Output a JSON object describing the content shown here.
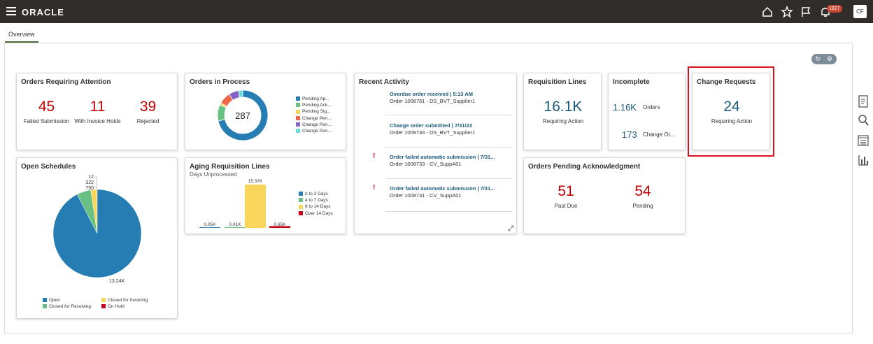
{
  "header": {
    "brand": "ORACLE",
    "notification_count": "1827",
    "user_initials": "CF",
    "colors": {
      "bar": "#312d2a",
      "badge": "#c74634"
    },
    "icons": [
      "menu-icon",
      "home-icon",
      "star-icon",
      "flag-icon",
      "bell-icon"
    ]
  },
  "tabs": [
    {
      "label": "Overview"
    }
  ],
  "cards": {
    "orders_attention": {
      "title": "Orders Requiring Attention",
      "metrics": [
        {
          "value": "45",
          "label": "Failed Submission"
        },
        {
          "value": "11",
          "label": "With Invoice Holds"
        },
        {
          "value": "39",
          "label": "Rejected"
        }
      ]
    },
    "orders_process": {
      "title": "Orders in Process",
      "center_value": "287",
      "legend": [
        {
          "label": "Pending Ap...",
          "color": "#267db3"
        },
        {
          "label": "Pending Ack...",
          "color": "#68c182"
        },
        {
          "label": "Pending Sig...",
          "color": "#fad55c"
        },
        {
          "label": "Change Pen...",
          "color": "#ed6647"
        },
        {
          "label": "Change Pen...",
          "color": "#8561c8"
        },
        {
          "label": "Change Pen...",
          "color": "#6ddbdb"
        }
      ]
    },
    "recent_activity": {
      "title": "Recent Activity",
      "items": [
        {
          "title": "Overdue order received | 5:13 AM",
          "sub": "Order 1008761 - DS_BVT_Supplier1",
          "warning": false
        },
        {
          "title": "Change order submitted | 7/31/23",
          "sub": "Order 1008734 - DS_BVT_Supplier1",
          "warning": false
        },
        {
          "title": "Order failed automatic submission | 7/31...",
          "sub": "Order 1008733 - CV_SuppA01",
          "warning": true
        },
        {
          "title": "Order failed automatic submission | 7/31...",
          "sub": "Order 1008731 - CV_SuppA01",
          "warning": true
        }
      ]
    },
    "requisition_lines": {
      "title": "Requisition Lines",
      "value": "16.1K",
      "label": "Requiring Action"
    },
    "incomplete": {
      "title": "Incomplete",
      "rows": [
        {
          "value": "1.16K",
          "label": "Orders"
        },
        {
          "value": "173",
          "label": "Change Or..."
        }
      ]
    },
    "change_requests": {
      "title": "Change Requests",
      "value": "24",
      "label": "Requiring Action"
    },
    "open_schedules": {
      "title": "Open Schedules",
      "slice_labels": [
        "12",
        "322",
        "750",
        "13.24K"
      ],
      "legend": [
        {
          "label": "Open",
          "color": "#267db3"
        },
        {
          "label": "Closed for Invoicing",
          "color": "#fad55c"
        },
        {
          "label": "Closed for Receiving",
          "color": "#68c182"
        },
        {
          "label": "On Hold",
          "color": "#d0021b"
        }
      ]
    },
    "aging": {
      "title": "Aging Requisition Lines",
      "subtitle": "Days Unprocessed",
      "bar_labels": [
        "0.05K",
        "0.01K",
        "15.37K",
        "0.65K"
      ],
      "legend": [
        {
          "label": "0 to 3 Days",
          "color": "#267db3"
        },
        {
          "label": "4 to 7 Days",
          "color": "#68c182"
        },
        {
          "label": "8 to 14 Days",
          "color": "#fad55c"
        },
        {
          "label": "Over 14 Days",
          "color": "#d0021b"
        }
      ]
    },
    "pending_ack": {
      "title": "Orders Pending Acknowledgment",
      "metrics": [
        {
          "value": "51",
          "label": "Past Due"
        },
        {
          "value": "54",
          "label": "Pending"
        }
      ]
    }
  },
  "chart_data": [
    {
      "type": "pie",
      "title": "Orders in Process",
      "total": 287,
      "series": [
        {
          "name": "Pending Ap...",
          "value": 205
        },
        {
          "name": "Pending Ack...",
          "value": 30
        },
        {
          "name": "Pending Sig...",
          "value": 4
        },
        {
          "name": "Change Pen...",
          "value": 22
        },
        {
          "name": "Change Pen...",
          "value": 18
        },
        {
          "name": "Change Pen...",
          "value": 8
        }
      ]
    },
    {
      "type": "pie",
      "title": "Open Schedules",
      "series": [
        {
          "name": "Open",
          "value": 13240
        },
        {
          "name": "Closed for Receiving",
          "value": 750
        },
        {
          "name": "Closed for Invoicing",
          "value": 322
        },
        {
          "name": "On Hold",
          "value": 12
        }
      ]
    },
    {
      "type": "bar",
      "title": "Aging Requisition Lines",
      "subtitle": "Days Unprocessed",
      "categories": [
        "0 to 3 Days",
        "4 to 7 Days",
        "8 to 14 Days",
        "Over 14 Days"
      ],
      "values": [
        0.05,
        0.01,
        15.37,
        0.65
      ],
      "unit": "K"
    }
  ]
}
